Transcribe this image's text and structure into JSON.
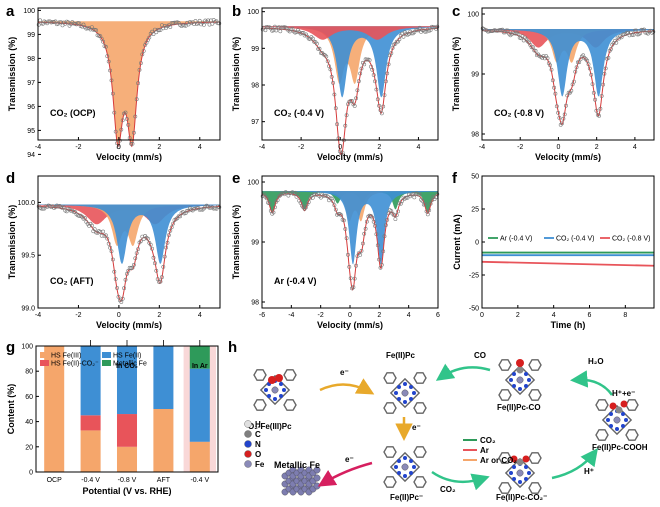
{
  "panel_labels": [
    "a",
    "b",
    "c",
    "d",
    "e",
    "f",
    "g",
    "h"
  ],
  "colors": {
    "orange": "#f5a66b",
    "blue": "#3e8fd4",
    "red": "#e8545a",
    "green": "#2e9a5a",
    "fit_line": "#d63b3b",
    "scatter": "#777777",
    "ar_bg": "#f9d8d8"
  },
  "chart_data": [
    {
      "panel": "a",
      "type": "scatter",
      "annotation": "CO₂ (OCP)",
      "xlabel": "Velocity (mm/s)",
      "ylabel": "Transmission (%)",
      "xlim": [
        -4,
        5
      ],
      "ylim": [
        94.6,
        100.1
      ],
      "xticks": [
        "-4",
        "-2",
        "0",
        "2",
        "4"
      ],
      "yticks": [
        "94",
        "95",
        "96",
        "97",
        "98",
        "99",
        "100"
      ],
      "components": [
        {
          "color": "orange",
          "baseline": 99.55,
          "doublets": [
            {
              "center": 0.3,
              "split": 0.7,
              "depth": 4.5,
              "width": 0.3
            }
          ]
        }
      ]
    },
    {
      "panel": "b",
      "type": "scatter",
      "annotation": "CO₂ (-0.4 V)",
      "xlabel": "Velocity (mm/s)",
      "ylabel": "Transmission (%)",
      "xlim": [
        -4,
        5
      ],
      "ylim": [
        96.5,
        100.1
      ],
      "xticks": [
        "-4",
        "-2",
        "0",
        "2",
        "4"
      ],
      "yticks": [
        "97",
        "98",
        "99",
        "100"
      ],
      "components": [
        {
          "color": "orange",
          "baseline": 99.6,
          "doublets": [
            {
              "center": 0.35,
              "split": 0.8,
              "depth": 1.4,
              "width": 0.3
            }
          ]
        },
        {
          "color": "blue",
          "baseline": 99.6,
          "doublets": [
            {
              "center": 1.1,
              "split": 2.0,
              "depth": 1.9,
              "width": 0.3
            }
          ]
        },
        {
          "color": "red",
          "baseline": 99.6,
          "doublets": [
            {
              "center": 0.5,
              "split": 2.8,
              "depth": 0.35,
              "width": 0.6
            }
          ]
        }
      ]
    },
    {
      "panel": "c",
      "type": "scatter",
      "annotation": "CO₂ (-0.8 V)",
      "xlabel": "Velocity (mm/s)",
      "ylabel": "Transmission (%)",
      "xlim": [
        -4,
        5
      ],
      "ylim": [
        97.9,
        100.1
      ],
      "xticks": [
        "-4",
        "-2",
        "0",
        "2",
        "4"
      ],
      "yticks": [
        "98",
        "99",
        "100"
      ],
      "components": [
        {
          "color": "red",
          "baseline": 99.75,
          "doublets": [
            {
              "center": 0.45,
              "split": 3.0,
              "depth": 0.3,
              "width": 0.55
            }
          ]
        },
        {
          "color": "orange",
          "baseline": 99.75,
          "doublets": [
            {
              "center": 0.3,
              "split": 0.8,
              "depth": 0.5,
              "width": 0.3
            }
          ]
        },
        {
          "color": "blue",
          "baseline": 99.75,
          "doublets": [
            {
              "center": 1.15,
              "split": 1.9,
              "depth": 1.1,
              "width": 0.3
            }
          ]
        }
      ]
    },
    {
      "panel": "d",
      "type": "scatter",
      "annotation": "CO₂ (AFT)",
      "xlabel": "Velocity (mm/s)",
      "ylabel": "Transmission (%)",
      "xlim": [
        -4,
        5
      ],
      "ylim": [
        99.0,
        100.25
      ],
      "xticks": [
        "-4",
        "-2",
        "0",
        "2",
        "4"
      ],
      "yticks": [
        "99.0",
        "99.5",
        "100.0"
      ],
      "components": [
        {
          "color": "red",
          "baseline": 99.98,
          "doublets": [
            {
              "center": 0.35,
              "split": 2.9,
              "depth": 0.18,
              "width": 0.6
            }
          ]
        },
        {
          "color": "orange",
          "baseline": 99.98,
          "doublets": [
            {
              "center": 0.3,
              "split": 0.8,
              "depth": 0.35,
              "width": 0.3
            }
          ]
        },
        {
          "color": "blue",
          "baseline": 99.98,
          "doublets": [
            {
              "center": 1.1,
              "split": 1.9,
              "depth": 0.55,
              "width": 0.3
            }
          ]
        }
      ]
    },
    {
      "panel": "e",
      "type": "scatter",
      "annotation": "Ar (-0.4 V)",
      "xlabel": "Velocity (mm/s)",
      "ylabel": "Transmission (%)",
      "xlim": [
        -6,
        6
      ],
      "ylim": [
        97.9,
        100.1
      ],
      "xticks": [
        "-6",
        "-4",
        "-2",
        "0",
        "2",
        "4",
        "6"
      ],
      "yticks": [
        "98",
        "99",
        "100"
      ],
      "components": [
        {
          "color": "green",
          "baseline": 99.85,
          "doublets": [
            {
              "center": 0.0,
              "split": 10.6,
              "depth": 0.35,
              "width": 0.25
            },
            {
              "center": 0.0,
              "split": 6.2,
              "depth": 0.3,
              "width": 0.25
            },
            {
              "center": 0.0,
              "split": 1.7,
              "depth": 0.2,
              "width": 0.25
            }
          ]
        },
        {
          "color": "orange",
          "baseline": 99.85,
          "doublets": [
            {
              "center": 0.35,
              "split": 0.8,
              "depth": 0.45,
              "width": 0.3
            }
          ]
        },
        {
          "color": "blue",
          "baseline": 99.85,
          "doublets": [
            {
              "center": 1.15,
              "split": 1.9,
              "depth": 1.2,
              "width": 0.3
            }
          ]
        }
      ]
    },
    {
      "panel": "f",
      "type": "line",
      "xlabel": "Time (h)",
      "ylabel": "Current (mA)",
      "xlim": [
        0,
        9.6
      ],
      "ylim": [
        -50,
        50
      ],
      "xticks": [
        "0",
        "2",
        "4",
        "6",
        "8"
      ],
      "yticks": [
        "-50",
        "-25",
        "0",
        "25",
        "50"
      ],
      "x": [
        0,
        9.6
      ],
      "series": [
        {
          "name": "Ar (-0.4 V)",
          "color": "green",
          "values": [
            -8,
            -8
          ]
        },
        {
          "name": "CO₂ (-0.4 V)",
          "color": "blue",
          "values": [
            -10,
            -10
          ]
        },
        {
          "name": "CO₂ (-0.8 V)",
          "color": "red",
          "values": [
            -15,
            -18
          ]
        }
      ]
    },
    {
      "panel": "g",
      "type": "bar",
      "stacked": true,
      "xlabel": "Potential (V vs. RHE)",
      "ylabel": "Content (%)",
      "ylim": [
        0,
        100
      ],
      "yticks": [
        "0",
        "20",
        "40",
        "60",
        "80",
        "100"
      ],
      "categories": [
        "OCP",
        "-0.4 V",
        "-0.8 V",
        "AFT",
        "-0.4 V"
      ],
      "group_labels": [
        {
          "text": "In CO₂",
          "from": 1,
          "to": 3
        },
        {
          "text": "In Ar",
          "from": 4,
          "to": 4
        }
      ],
      "series": [
        {
          "name": "HS Fe(III)",
          "color": "orange",
          "values": [
            100,
            33,
            20,
            50,
            24
          ]
        },
        {
          "name": "HS Fe(II)-CO₂⁻",
          "color": "red",
          "values": [
            0,
            12,
            26,
            0,
            0
          ]
        },
        {
          "name": "HS Fe(II)",
          "color": "blue",
          "values": [
            0,
            55,
            54,
            50,
            58
          ]
        },
        {
          "name": "Metallic Fe",
          "color": "green",
          "values": [
            0,
            0,
            0,
            0,
            18
          ]
        }
      ]
    }
  ],
  "scheme": {
    "labels": {
      "o2_fe3pc": "O₂-Fe(III)Pc",
      "fe2pc": "Fe(II)Pc",
      "fe2pc_minus": "Fe(II)Pc⁻",
      "fe2pc_co": "Fe(II)Pc-CO",
      "fe2pc_co2": "Fe(II)Pc-CO₂⁻",
      "fe2pc_cooh": "Fe(II)Pc-COOH",
      "metallic_fe": "Metallic Fe",
      "e_minus": "e⁻",
      "co": "CO",
      "h2o": "H₂O",
      "h_e": "H⁺+e⁻",
      "h_plus": "H⁺",
      "co2": "CO₂"
    },
    "legend": [
      {
        "color": "green",
        "label": "CO₂"
      },
      {
        "color": "red",
        "label": "Ar"
      },
      {
        "color": "orange",
        "label": "Ar or CO₂"
      }
    ],
    "atom_key": [
      {
        "symbol": "H",
        "color": "#e0e0e0"
      },
      {
        "symbol": "C",
        "color": "#7f7f7f"
      },
      {
        "symbol": "N",
        "color": "#2244cc"
      },
      {
        "symbol": "O",
        "color": "#d61f1f"
      },
      {
        "symbol": "Fe",
        "color": "#8a8ab8"
      }
    ]
  }
}
